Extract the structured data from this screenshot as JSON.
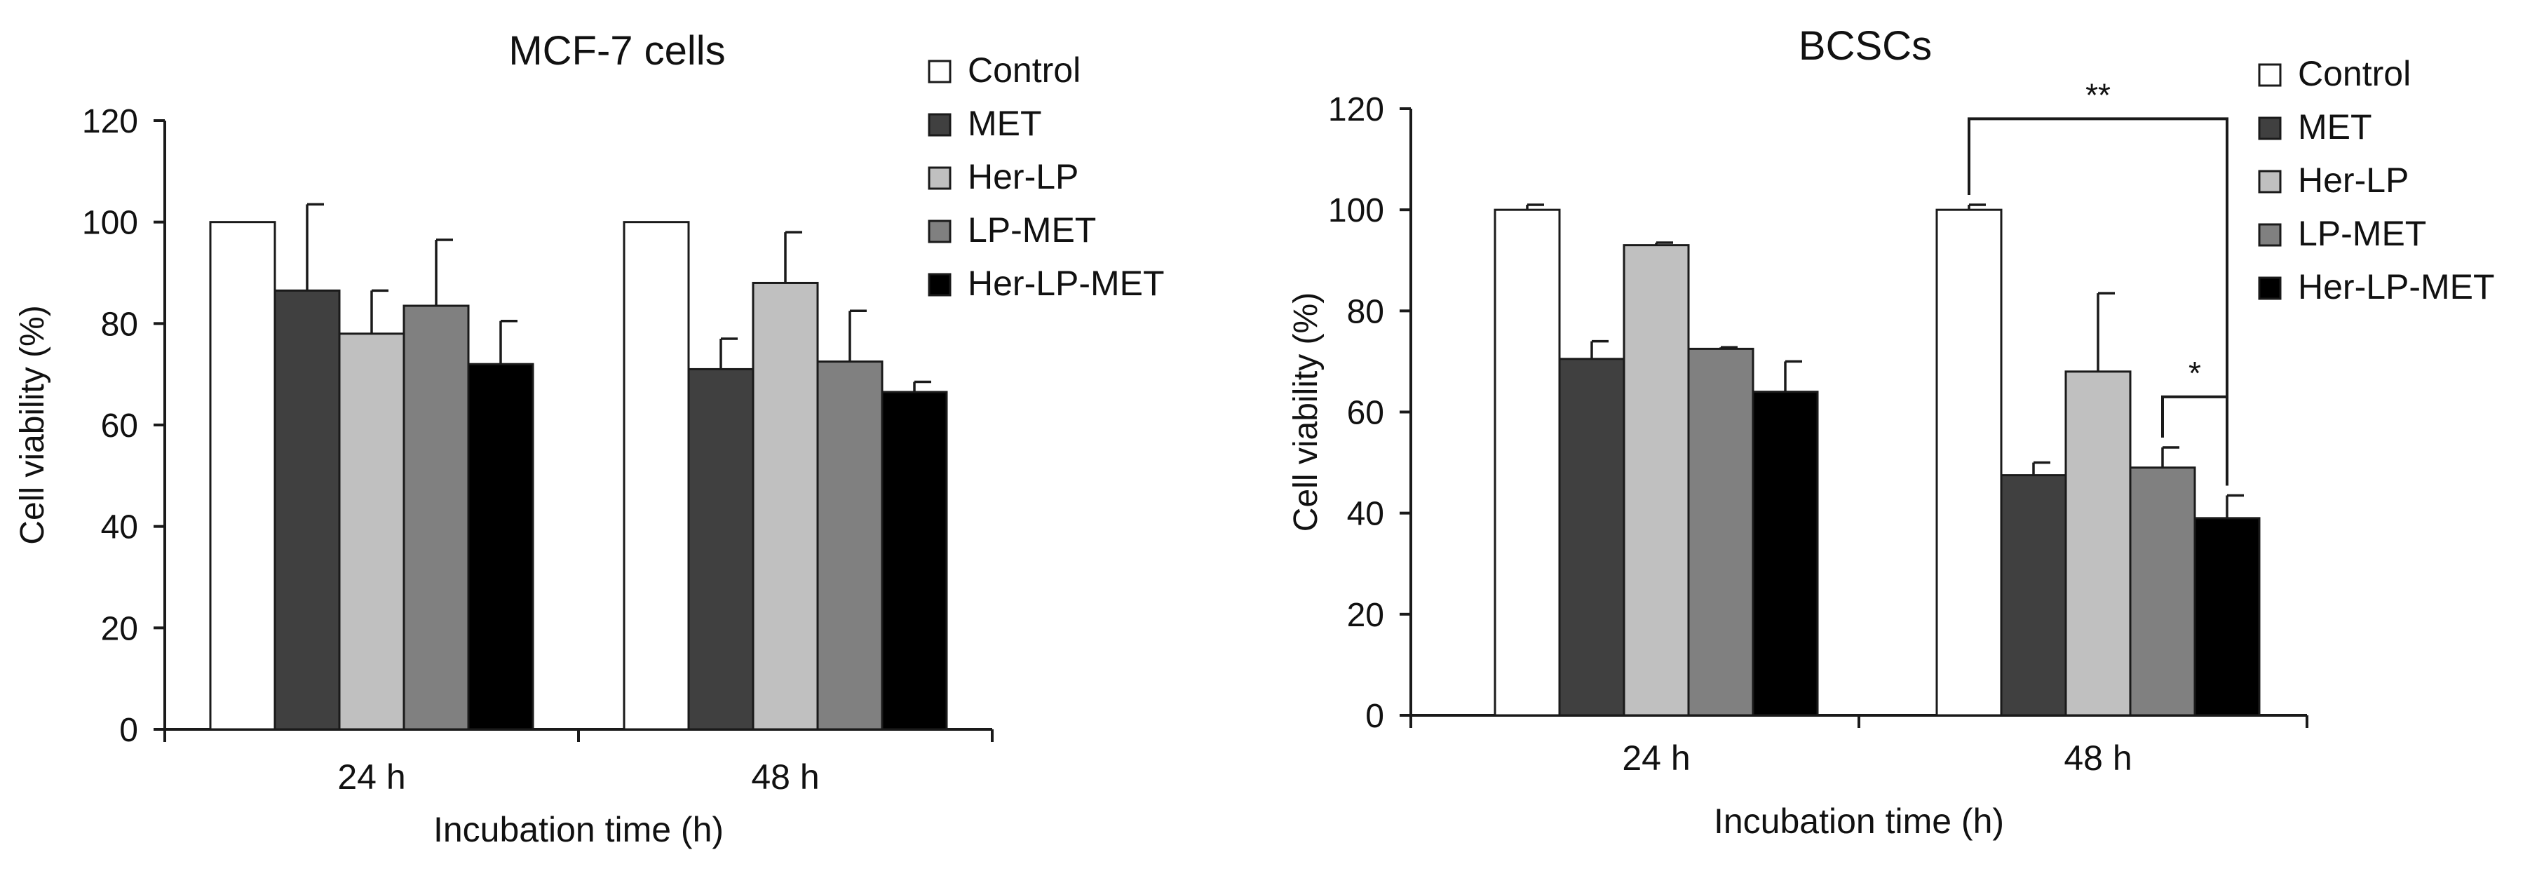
{
  "chart_data": [
    {
      "type": "bar",
      "title": "MCF-7 cells",
      "xlabel": "Incubation time (h)",
      "ylabel": "Cell viability (%)",
      "ylim": [
        0,
        120
      ],
      "yticks": [
        0,
        20,
        40,
        60,
        80,
        100,
        120
      ],
      "categories": [
        "24 h",
        "48 h"
      ],
      "legend_position": "top-right",
      "series": [
        {
          "name": "Control",
          "color": "#ffffff",
          "values": [
            100,
            100
          ],
          "errors": [
            0,
            0
          ]
        },
        {
          "name": "MET",
          "color": "#404040",
          "values": [
            86.5,
            71
          ],
          "errors": [
            17,
            6
          ]
        },
        {
          "name": "Her-LP",
          "color": "#c0c0c0",
          "values": [
            78,
            88
          ],
          "errors": [
            8.5,
            10
          ]
        },
        {
          "name": "LP-MET",
          "color": "#808080",
          "values": [
            83.5,
            72.5
          ],
          "errors": [
            13,
            10
          ]
        },
        {
          "name": "Her-LP-MET",
          "color": "#000000",
          "values": [
            72,
            66.5
          ],
          "errors": [
            8.5,
            2
          ]
        }
      ],
      "annotations": []
    },
    {
      "type": "bar",
      "title": "BCSCs",
      "xlabel": "Incubation time (h)",
      "ylabel": "Cell viability (%)",
      "ylim": [
        0,
        120
      ],
      "yticks": [
        0,
        20,
        40,
        60,
        80,
        100,
        120
      ],
      "categories": [
        "24 h",
        "48 h"
      ],
      "legend_position": "top-right",
      "series": [
        {
          "name": "Control",
          "color": "#ffffff",
          "values": [
            100,
            100
          ],
          "errors": [
            1,
            1
          ]
        },
        {
          "name": "MET",
          "color": "#404040",
          "values": [
            70.5,
            47.5
          ],
          "errors": [
            3.5,
            2.5
          ]
        },
        {
          "name": "Her-LP",
          "color": "#c0c0c0",
          "values": [
            93,
            68
          ],
          "errors": [
            0.5,
            15.5
          ]
        },
        {
          "name": "LP-MET",
          "color": "#808080",
          "values": [
            72.5,
            49
          ],
          "errors": [
            0.3,
            4
          ]
        },
        {
          "name": "Her-LP-MET",
          "color": "#000000",
          "values": [
            64,
            39
          ],
          "errors": [
            6,
            4.5
          ]
        }
      ],
      "annotations": [
        {
          "label": "**",
          "from": {
            "category": 1,
            "series": 0
          },
          "to": {
            "category": 1,
            "series": 4
          },
          "y": 118
        },
        {
          "label": "*",
          "from": {
            "category": 1,
            "series": 3
          },
          "to": {
            "category": 1,
            "series": 4
          },
          "y": 63
        }
      ]
    }
  ]
}
